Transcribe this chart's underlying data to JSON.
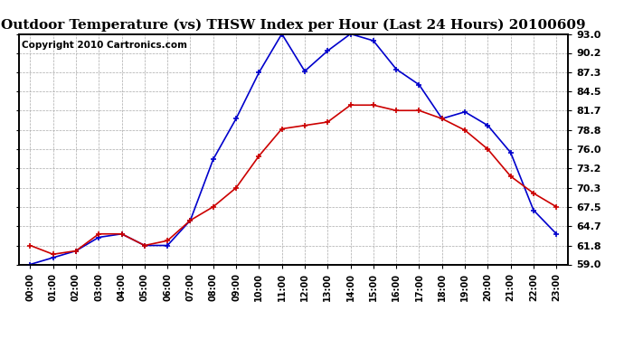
{
  "title": "Outdoor Temperature (vs) THSW Index per Hour (Last 24 Hours) 20100609",
  "copyright": "Copyright 2010 Cartronics.com",
  "hours": [
    "00:00",
    "01:00",
    "02:00",
    "03:00",
    "04:00",
    "05:00",
    "06:00",
    "07:00",
    "08:00",
    "09:00",
    "10:00",
    "11:00",
    "12:00",
    "13:00",
    "14:00",
    "15:00",
    "16:00",
    "17:00",
    "18:00",
    "19:00",
    "20:00",
    "21:00",
    "22:00",
    "23:00"
  ],
  "temp": [
    61.8,
    60.5,
    61.0,
    63.5,
    63.5,
    61.8,
    62.5,
    65.5,
    67.5,
    70.3,
    75.0,
    79.0,
    79.5,
    80.0,
    82.5,
    82.5,
    81.7,
    81.7,
    80.5,
    78.8,
    76.0,
    72.0,
    69.5,
    67.5
  ],
  "thsw": [
    59.0,
    60.0,
    61.0,
    63.0,
    63.5,
    61.8,
    61.8,
    65.5,
    74.5,
    80.5,
    87.3,
    93.0,
    87.5,
    90.5,
    93.0,
    92.0,
    87.8,
    85.5,
    80.5,
    81.5,
    79.5,
    75.5,
    67.0,
    63.5
  ],
  "temp_color": "#cc0000",
  "thsw_color": "#0000cc",
  "ylim_min": 59.0,
  "ylim_max": 93.0,
  "yticks": [
    59.0,
    61.8,
    64.7,
    67.5,
    70.3,
    73.2,
    76.0,
    78.8,
    81.7,
    84.5,
    87.3,
    90.2,
    93.0
  ],
  "ytick_labels": [
    "59.0",
    "61.8",
    "64.7",
    "67.5",
    "70.3",
    "73.2",
    "76.0",
    "78.8",
    "81.7",
    "84.5",
    "87.3",
    "90.2",
    "93.0"
  ],
  "bg_color": "#ffffff",
  "grid_color": "#aaaaaa",
  "title_fontsize": 11,
  "copyright_fontsize": 7.5
}
